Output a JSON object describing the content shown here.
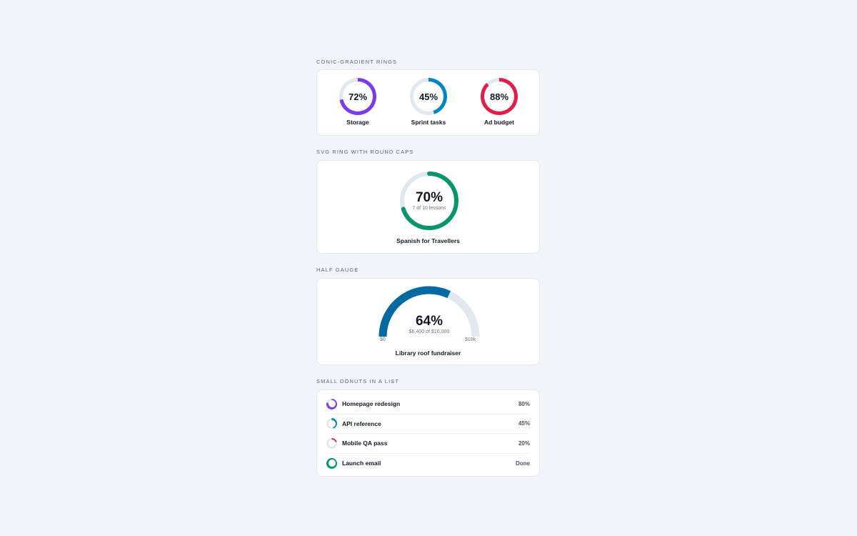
{
  "conic": {
    "heading": "CONIC-GRADIENT RINGS",
    "items": [
      {
        "label": "Storage",
        "percent_text": "72%",
        "value": 72,
        "color": "#7c3aed"
      },
      {
        "label": "Sprint tasks",
        "percent_text": "45%",
        "value": 45,
        "color": "#0284c7"
      },
      {
        "label": "Ad budget",
        "percent_text": "88%",
        "value": 88,
        "color": "#e11d48"
      }
    ],
    "track_color": "#e2e8f0"
  },
  "svg_ring": {
    "heading": "SVG RING WITH ROUND CAPS",
    "percent_text": "70%",
    "value": 70,
    "subtitle": "7 of 10 lessons",
    "title": "Spanish for Travellers",
    "color": "#059669"
  },
  "gauge": {
    "heading": "HALF GAUGE",
    "percent_text": "64%",
    "value": 64,
    "subtitle": "$6,400 of $10,000",
    "min_label": "$0",
    "max_label": "$10k",
    "title": "Library roof fundraiser",
    "color": "#0369a1"
  },
  "list": {
    "heading": "SMALL DONUTS IN A LIST",
    "items": [
      {
        "label": "Homepage redesign",
        "status": "80%",
        "value": 80,
        "color": "#7c3aed"
      },
      {
        "label": "API reference",
        "status": "45%",
        "value": 45,
        "color": "#0284c7"
      },
      {
        "label": "Mobile QA pass",
        "status": "20%",
        "value": 20,
        "color": "#e11d48"
      },
      {
        "label": "Launch email",
        "status": "Done",
        "value": 100,
        "color": "#059669"
      }
    ]
  }
}
